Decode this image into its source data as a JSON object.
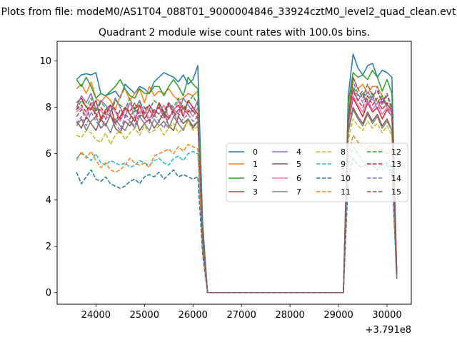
{
  "suptitle": "Plots from file: modeM0/AS1T04_088T01_9000004846_33924cztM0_level2_quad_clean.evt",
  "chart_data": {
    "type": "line",
    "title": "Quadrant 2 module wise count rates with 100.0s bins.",
    "xlabel": "",
    "ylabel": "",
    "x_offset_label": "+3.791e8",
    "xlim": [
      23200,
      30500
    ],
    "ylim": [
      -0.5,
      10.85
    ],
    "xticks": [
      24000,
      25000,
      26000,
      27000,
      28000,
      29000,
      30000
    ],
    "yticks": [
      0,
      2,
      4,
      6,
      8,
      10
    ],
    "grid": false,
    "legend": {
      "placement": "center-right",
      "columns": 4
    },
    "x": [
      23600,
      23700,
      23800,
      23900,
      24000,
      24100,
      24200,
      24300,
      24400,
      24500,
      24600,
      24700,
      24800,
      24900,
      25000,
      25100,
      25200,
      25300,
      25400,
      25500,
      25600,
      25700,
      25800,
      25900,
      26000,
      26100,
      26200,
      26300,
      26400,
      26500,
      26600,
      26700,
      26800,
      26900,
      27000,
      27100,
      27200,
      27300,
      27400,
      27500,
      27600,
      27700,
      27800,
      27900,
      28000,
      28100,
      28200,
      28300,
      28400,
      28500,
      28600,
      28700,
      28800,
      28900,
      29000,
      29100,
      29200,
      29300,
      29400,
      29500,
      29600,
      29700,
      29800,
      29900,
      30000,
      30100,
      30200
    ],
    "series": [
      {
        "name": "0",
        "color": "#1f77b4",
        "dash": false,
        "values": [
          9.2,
          9.4,
          9.45,
          9.4,
          9.5,
          8.6,
          8.5,
          8.6,
          8.7,
          8.4,
          9.0,
          8.8,
          8.6,
          8.9,
          8.8,
          8.6,
          9.1,
          9.3,
          9.5,
          9.4,
          9.3,
          9.1,
          9.4,
          9.0,
          9.2,
          9.8,
          3.0,
          0.0,
          0.0,
          0.0,
          0.0,
          0.0,
          0.0,
          0.0,
          0.0,
          0.0,
          0.0,
          0.0,
          0.0,
          0.0,
          0.0,
          0.0,
          0.0,
          0.0,
          0.0,
          0.0,
          0.0,
          0.0,
          0.0,
          0.0,
          0.0,
          0.0,
          0.0,
          0.0,
          0.0,
          0.0,
          8.5,
          10.3,
          9.7,
          9.4,
          9.8,
          9.9,
          9.3,
          9.6,
          9.5,
          9.3,
          0.9
        ]
      },
      {
        "name": "1",
        "color": "#ff7f0e",
        "dash": false,
        "values": [
          8.8,
          9.0,
          8.6,
          9.1,
          8.4,
          8.2,
          8.5,
          8.3,
          7.9,
          8.5,
          8.8,
          8.3,
          8.6,
          8.8,
          8.2,
          8.9,
          8.5,
          8.7,
          8.6,
          8.8,
          8.5,
          8.3,
          8.4,
          8.6,
          8.5,
          8.7,
          2.6,
          0.0,
          0.0,
          0.0,
          0.0,
          0.0,
          0.0,
          0.0,
          0.0,
          0.0,
          0.0,
          0.0,
          0.0,
          0.0,
          0.0,
          0.0,
          0.0,
          0.0,
          0.0,
          0.0,
          0.0,
          0.0,
          0.0,
          0.0,
          0.0,
          0.0,
          0.0,
          0.0,
          0.0,
          0.0,
          7.9,
          9.3,
          8.8,
          9.0,
          8.6,
          8.9,
          8.9,
          8.5,
          8.1,
          8.0,
          0.8
        ]
      },
      {
        "name": "2",
        "color": "#2ca02c",
        "dash": false,
        "values": [
          9.2,
          8.9,
          9.3,
          8.9,
          8.4,
          8.6,
          8.5,
          8.7,
          8.9,
          9.2,
          8.8,
          8.5,
          8.4,
          8.8,
          8.6,
          8.6,
          8.9,
          8.9,
          8.5,
          8.9,
          9.2,
          8.9,
          8.5,
          9.3,
          9.0,
          8.8,
          2.7,
          0.0,
          0.0,
          0.0,
          0.0,
          0.0,
          0.0,
          0.0,
          0.0,
          0.0,
          0.0,
          0.0,
          0.0,
          0.0,
          0.0,
          0.0,
          0.0,
          0.0,
          0.0,
          0.0,
          0.0,
          0.0,
          0.0,
          0.0,
          0.0,
          0.0,
          0.0,
          0.0,
          0.0,
          0.0,
          8.2,
          9.5,
          9.3,
          9.4,
          9.2,
          9.6,
          9.3,
          8.7,
          9.2,
          8.6,
          0.8
        ]
      },
      {
        "name": "3",
        "color": "#d62728",
        "dash": false,
        "values": [
          8.2,
          8.4,
          8.0,
          7.9,
          8.3,
          7.5,
          7.9,
          8.1,
          7.3,
          7.6,
          8.0,
          7.7,
          7.4,
          8.1,
          7.5,
          7.9,
          7.6,
          8.2,
          7.8,
          7.5,
          7.9,
          8.1,
          7.6,
          8.3,
          8.0,
          7.7,
          2.4,
          0.0,
          0.0,
          0.0,
          0.0,
          0.0,
          0.0,
          0.0,
          0.0,
          0.0,
          0.0,
          0.0,
          0.0,
          0.0,
          0.0,
          0.0,
          0.0,
          0.0,
          0.0,
          0.0,
          0.0,
          0.0,
          0.0,
          0.0,
          0.0,
          0.0,
          0.0,
          0.0,
          0.0,
          0.0,
          7.3,
          8.4,
          8.0,
          7.6,
          8.2,
          7.8,
          8.0,
          7.5,
          7.9,
          7.6,
          0.8
        ]
      },
      {
        "name": "4",
        "color": "#9467bd",
        "dash": false,
        "values": [
          8.0,
          8.5,
          8.2,
          8.6,
          7.9,
          8.3,
          8.1,
          7.8,
          8.4,
          8.0,
          7.6,
          8.2,
          7.9,
          8.3,
          7.7,
          8.1,
          7.8,
          8.0,
          7.6,
          8.2,
          7.9,
          7.7,
          8.4,
          8.1,
          7.8,
          8.3,
          2.5,
          0.0,
          0.0,
          0.0,
          0.0,
          0.0,
          0.0,
          0.0,
          0.0,
          0.0,
          0.0,
          0.0,
          0.0,
          0.0,
          0.0,
          0.0,
          0.0,
          0.0,
          0.0,
          0.0,
          0.0,
          0.0,
          0.0,
          0.0,
          0.0,
          0.0,
          0.0,
          0.0,
          0.0,
          0.0,
          7.7,
          8.8,
          8.3,
          8.6,
          8.1,
          8.5,
          7.9,
          8.4,
          8.0,
          7.8,
          0.8
        ]
      },
      {
        "name": "5",
        "color": "#8c564b",
        "dash": false,
        "values": [
          7.4,
          7.1,
          7.6,
          7.3,
          7.0,
          7.5,
          7.2,
          7.7,
          7.1,
          6.9,
          7.4,
          7.2,
          7.6,
          7.0,
          7.3,
          7.5,
          7.1,
          7.4,
          7.8,
          7.2,
          7.0,
          7.6,
          7.3,
          7.5,
          7.1,
          7.4,
          2.3,
          0.0,
          0.0,
          0.0,
          0.0,
          0.0,
          0.0,
          0.0,
          0.0,
          0.0,
          0.0,
          0.0,
          0.0,
          0.0,
          0.0,
          0.0,
          0.0,
          0.0,
          0.0,
          0.0,
          0.0,
          0.0,
          0.0,
          0.0,
          0.0,
          0.0,
          0.0,
          0.0,
          0.0,
          0.0,
          7.0,
          8.0,
          7.6,
          7.3,
          7.8,
          7.4,
          7.7,
          7.2,
          7.5,
          7.0,
          0.7
        ]
      },
      {
        "name": "6",
        "color": "#e377c2",
        "dash": false,
        "values": [
          7.8,
          8.0,
          7.6,
          8.2,
          7.7,
          7.9,
          7.5,
          8.1,
          7.8,
          7.4,
          7.9,
          8.2,
          7.6,
          7.8,
          8.0,
          7.5,
          7.9,
          7.7,
          8.1,
          7.6,
          7.8,
          8.3,
          7.7,
          7.9,
          7.6,
          8.0,
          2.4,
          0.0,
          0.0,
          0.0,
          0.0,
          0.0,
          0.0,
          0.0,
          0.0,
          0.0,
          0.0,
          0.0,
          0.0,
          0.0,
          0.0,
          0.0,
          0.0,
          0.0,
          0.0,
          0.0,
          0.0,
          0.0,
          0.0,
          0.0,
          0.0,
          0.0,
          0.0,
          0.0,
          0.0,
          0.0,
          7.5,
          8.5,
          8.1,
          7.8,
          8.3,
          7.9,
          8.2,
          7.7,
          8.0,
          7.6,
          0.8
        ]
      },
      {
        "name": "7",
        "color": "#7f7f7f",
        "dash": false,
        "values": [
          7.2,
          7.5,
          7.0,
          7.4,
          7.6,
          7.1,
          7.3,
          6.9,
          7.5,
          7.2,
          7.0,
          7.4,
          7.1,
          7.6,
          7.3,
          7.0,
          7.5,
          7.2,
          7.4,
          7.1,
          7.6,
          7.3,
          7.0,
          7.5,
          7.2,
          7.4,
          2.2,
          0.0,
          0.0,
          0.0,
          0.0,
          0.0,
          0.0,
          0.0,
          0.0,
          0.0,
          0.0,
          0.0,
          0.0,
          0.0,
          0.0,
          0.0,
          0.0,
          0.0,
          0.0,
          0.0,
          0.0,
          0.0,
          0.0,
          0.0,
          0.0,
          0.0,
          0.0,
          0.0,
          0.0,
          0.0,
          6.9,
          7.9,
          7.5,
          7.2,
          7.7,
          7.3,
          7.6,
          7.1,
          7.4,
          7.0,
          0.7
        ]
      },
      {
        "name": "8",
        "color": "#bcbd22",
        "dash": true,
        "values": [
          6.8,
          6.7,
          7.0,
          6.9,
          6.6,
          6.5,
          6.9,
          6.4,
          6.8,
          7.0,
          6.6,
          6.9,
          7.1,
          6.8,
          7.2,
          6.9,
          7.0,
          7.2,
          6.8,
          7.1,
          7.3,
          6.9,
          7.1,
          7.4,
          7.0,
          7.2,
          2.1,
          0.0,
          0.0,
          0.0,
          0.0,
          0.0,
          0.0,
          0.0,
          0.0,
          0.0,
          0.0,
          0.0,
          0.0,
          0.0,
          0.0,
          0.0,
          0.0,
          0.0,
          0.0,
          0.0,
          0.0,
          0.0,
          0.0,
          0.0,
          0.0,
          0.0,
          0.0,
          0.0,
          0.0,
          0.0,
          6.6,
          7.5,
          7.2,
          7.0,
          7.4,
          7.1,
          7.3,
          6.9,
          7.2,
          6.8,
          0.7
        ]
      },
      {
        "name": "9",
        "color": "#17becf",
        "dash": true,
        "values": [
          5.8,
          6.0,
          5.9,
          5.7,
          6.0,
          5.6,
          5.5,
          5.7,
          5.6,
          5.5,
          5.6,
          5.4,
          5.5,
          5.7,
          5.6,
          5.5,
          5.7,
          5.8,
          5.6,
          5.5,
          5.8,
          5.9,
          5.7,
          6.0,
          6.1,
          6.0,
          1.8,
          0.0,
          0.0,
          0.0,
          0.0,
          0.0,
          0.0,
          0.0,
          0.0,
          0.0,
          0.0,
          0.0,
          0.0,
          0.0,
          0.0,
          0.0,
          0.0,
          0.0,
          0.0,
          0.0,
          0.0,
          0.0,
          0.0,
          0.0,
          0.0,
          0.0,
          0.0,
          0.0,
          0.0,
          0.0,
          5.5,
          6.3,
          6.0,
          5.7,
          5.4,
          5.6,
          5.5,
          5.3,
          5.5,
          5.2,
          0.6
        ]
      },
      {
        "name": "10",
        "color": "#1f77b4",
        "dash": true,
        "values": [
          5.2,
          4.7,
          5.0,
          5.3,
          4.9,
          4.8,
          5.0,
          4.7,
          4.6,
          4.5,
          4.6,
          4.8,
          4.9,
          4.7,
          5.0,
          5.1,
          5.0,
          5.2,
          4.9,
          5.1,
          5.3,
          5.0,
          5.1,
          5.0,
          4.9,
          5.0,
          1.6,
          0.0,
          0.0,
          0.0,
          0.0,
          0.0,
          0.0,
          0.0,
          0.0,
          0.0,
          0.0,
          0.0,
          0.0,
          0.0,
          0.0,
          0.0,
          0.0,
          0.0,
          0.0,
          0.0,
          0.0,
          0.0,
          0.0,
          0.0,
          0.0,
          0.0,
          0.0,
          0.0,
          0.0,
          0.0,
          4.9,
          5.8,
          5.5,
          5.4,
          5.6,
          5.5,
          5.3,
          5.5,
          5.6,
          5.4,
          0.6
        ]
      },
      {
        "name": "11",
        "color": "#ff7f0e",
        "dash": true,
        "values": [
          5.7,
          6.1,
          5.8,
          6.1,
          5.7,
          5.4,
          5.6,
          5.3,
          5.2,
          5.3,
          5.5,
          5.8,
          5.6,
          5.5,
          5.6,
          5.4,
          5.9,
          6.0,
          6.1,
          6.2,
          6.0,
          6.3,
          6.1,
          6.4,
          6.3,
          6.2,
          1.9,
          0.0,
          0.0,
          0.0,
          0.0,
          0.0,
          0.0,
          0.0,
          0.0,
          0.0,
          0.0,
          0.0,
          0.0,
          0.0,
          0.0,
          0.0,
          0.0,
          0.0,
          0.0,
          0.0,
          0.0,
          0.0,
          0.0,
          0.0,
          0.0,
          0.0,
          0.0,
          0.0,
          0.0,
          0.0,
          5.8,
          6.8,
          6.5,
          6.3,
          6.2,
          6.4,
          6.1,
          6.2,
          6.0,
          6.1,
          0.6
        ]
      },
      {
        "name": "12",
        "color": "#2ca02c",
        "dash": true,
        "values": [
          7.9,
          8.3,
          8.0,
          8.4,
          7.8,
          8.2,
          8.0,
          7.7,
          8.3,
          8.1,
          7.9,
          8.4,
          7.8,
          8.2,
          8.0,
          7.9,
          8.3,
          8.1,
          7.7,
          8.2,
          8.0,
          8.4,
          7.9,
          8.2,
          8.5,
          8.1,
          2.5,
          0.0,
          0.0,
          0.0,
          0.0,
          0.0,
          0.0,
          0.0,
          0.0,
          0.0,
          0.0,
          0.0,
          0.0,
          0.0,
          0.0,
          0.0,
          0.0,
          0.0,
          0.0,
          0.0,
          0.0,
          0.0,
          0.0,
          0.0,
          0.0,
          0.0,
          0.0,
          0.0,
          0.0,
          0.0,
          7.8,
          8.9,
          8.5,
          8.7,
          8.3,
          8.6,
          8.2,
          8.5,
          8.1,
          7.9,
          0.8
        ]
      },
      {
        "name": "13",
        "color": "#d62728",
        "dash": true,
        "values": [
          7.9,
          8.1,
          7.8,
          8.2,
          7.6,
          8.0,
          7.7,
          8.1,
          7.9,
          7.5,
          8.0,
          7.8,
          8.2,
          7.6,
          7.9,
          8.1,
          7.7,
          8.0,
          7.8,
          8.2,
          7.6,
          7.9,
          8.1,
          7.8,
          8.0,
          7.7,
          2.4,
          0.0,
          0.0,
          0.0,
          0.0,
          0.0,
          0.0,
          0.0,
          0.0,
          0.0,
          0.0,
          0.0,
          0.0,
          0.0,
          0.0,
          0.0,
          0.0,
          0.0,
          0.0,
          0.0,
          0.0,
          0.0,
          0.0,
          0.0,
          0.0,
          0.0,
          0.0,
          0.0,
          0.0,
          0.0,
          7.6,
          8.7,
          8.3,
          8.0,
          8.5,
          8.1,
          8.4,
          7.9,
          8.2,
          7.8,
          0.8
        ]
      },
      {
        "name": "14",
        "color": "#9467bd",
        "dash": true,
        "values": [
          7.3,
          7.6,
          7.2,
          7.8,
          7.4,
          7.1,
          7.5,
          7.7,
          7.3,
          7.0,
          7.6,
          7.4,
          7.2,
          7.8,
          7.5,
          7.3,
          7.7,
          7.4,
          7.1,
          7.6,
          7.8,
          7.3,
          7.5,
          7.7,
          7.4,
          7.6,
          2.3,
          0.0,
          0.0,
          0.0,
          0.0,
          0.0,
          0.0,
          0.0,
          0.0,
          0.0,
          0.0,
          0.0,
          0.0,
          0.0,
          0.0,
          0.0,
          0.0,
          0.0,
          0.0,
          0.0,
          0.0,
          0.0,
          0.0,
          0.0,
          0.0,
          0.0,
          0.0,
          0.0,
          0.0,
          0.0,
          7.2,
          9.1,
          8.6,
          8.2,
          8.7,
          8.3,
          8.9,
          8.1,
          8.5,
          7.9,
          0.7
        ]
      },
      {
        "name": "15",
        "color": "#8c564b",
        "dash": true,
        "values": [
          7.6,
          7.9,
          7.5,
          8.0,
          7.7,
          7.4,
          7.8,
          7.6,
          7.3,
          7.9,
          7.7,
          7.5,
          8.0,
          7.6,
          7.8,
          7.4,
          7.9,
          7.7,
          7.5,
          8.1,
          7.8,
          7.6,
          8.0,
          7.7,
          7.9,
          7.5,
          2.3,
          0.0,
          0.0,
          0.0,
          0.0,
          0.0,
          0.0,
          0.0,
          0.0,
          0.0,
          0.0,
          0.0,
          0.0,
          0.0,
          0.0,
          0.0,
          0.0,
          0.0,
          0.0,
          0.0,
          0.0,
          0.0,
          0.0,
          0.0,
          0.0,
          0.0,
          0.0,
          0.0,
          0.0,
          0.0,
          7.4,
          9.3,
          8.8,
          8.4,
          9.0,
          8.5,
          8.7,
          8.2,
          8.6,
          8.0,
          0.8
        ]
      }
    ]
  }
}
